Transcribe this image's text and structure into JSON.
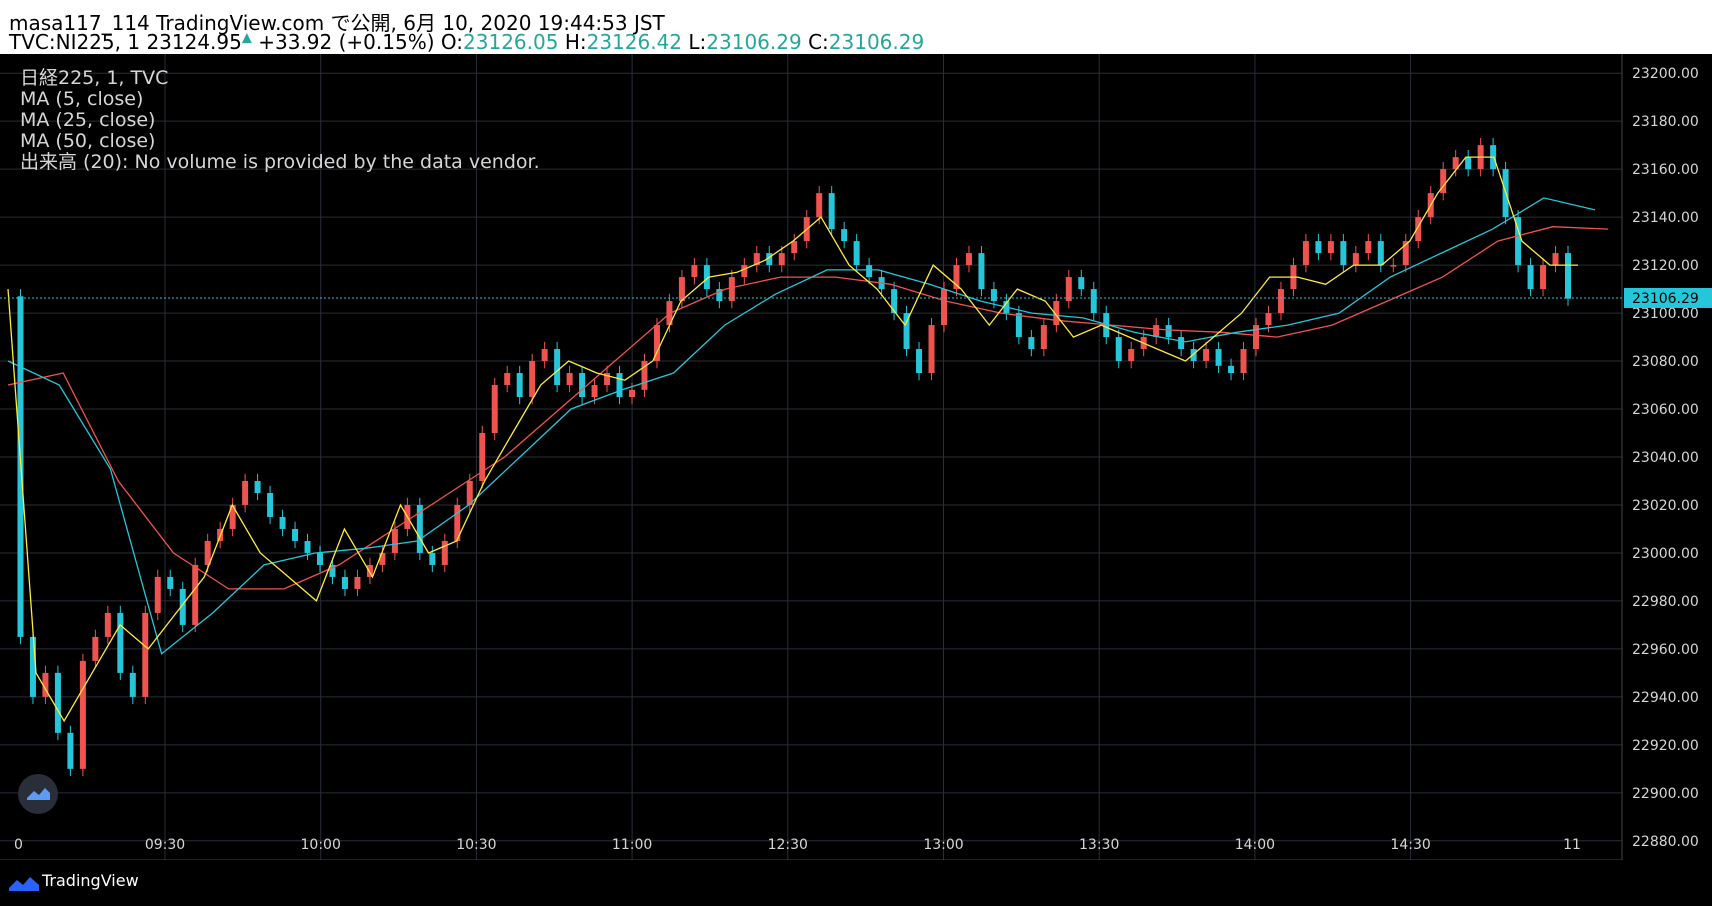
{
  "header": {
    "author": "masa117_114",
    "site": "TradingView.com",
    "published_prefix": "で公開,",
    "timestamp": "6月 10, 2020 19:44:53 JST",
    "symbol": "TVC:NI225, 1",
    "last_price": "23124.95",
    "change": "+33.92 (+0.15%)",
    "o_label": "O:",
    "o": "23126.05",
    "h_label": "H:",
    "h": "23126.42",
    "l_label": "L:",
    "l": "23106.29",
    "c_label": "C:",
    "c": "23106.29"
  },
  "legend": {
    "symbol": "日経225, 1, TVC",
    "ma5": "MA (5, close)",
    "ma25": "MA (25, close)",
    "ma50": "MA (50, close)",
    "volume": "出来高 (20): No volume is provided by the data vendor."
  },
  "footer": {
    "brand": "TradingView"
  },
  "colors": {
    "up": "#ef5350",
    "down": "#26c6da",
    "ma5": "#ffeb3b",
    "ma25": "#26c6da",
    "ma50": "#ef5350",
    "grid": "#2a2e39",
    "price_tag": "#26c6da"
  },
  "chart_data": {
    "type": "line",
    "title": "",
    "xlabel": "",
    "ylabel": "",
    "x_tick_labels": [
      "0",
      "09:30",
      "10:00",
      "10:30",
      "11:00",
      "12:30",
      "13:00",
      "13:30",
      "14:00",
      "14:30",
      "11"
    ],
    "y_tick_labels": [
      "23200.00",
      "23180.00",
      "23160.00",
      "23140.00",
      "23120.00",
      "23100.00",
      "23080.00",
      "23060.00",
      "23040.00",
      "23020.00",
      "23000.00",
      "22980.00",
      "22960.00",
      "22940.00",
      "22920.00",
      "22900.00",
      "22880.00"
    ],
    "ylim": [
      22872,
      23208
    ],
    "grid": true,
    "current_price_label": "23106.29",
    "series": [
      {
        "name": "日経225",
        "values": [
          23107,
          22965,
          22940,
          22950,
          22925,
          22910,
          22955,
          22965,
          22975,
          22950,
          22940,
          22975,
          22990,
          22985,
          22970,
          22995,
          23005,
          23010,
          23020,
          23030,
          23025,
          23015,
          23010,
          23005,
          23000,
          22995,
          22990,
          22985,
          22990,
          22995,
          23000,
          23010,
          23020,
          23000,
          22995,
          23005,
          23020,
          23030,
          23050,
          23070,
          23075,
          23065,
          23080,
          23085,
          23070,
          23075,
          23065,
          23070,
          23075,
          23065,
          23068,
          23080,
          23095,
          23105,
          23115,
          23120,
          23110,
          23105,
          23115,
          23120,
          23125,
          23120,
          23125,
          23130,
          23140,
          23150,
          23135,
          23130,
          23120,
          23115,
          23110,
          23100,
          23085,
          23075,
          23095,
          23110,
          23120,
          23125,
          23110,
          23105,
          23100,
          23090,
          23085,
          23095,
          23105,
          23115,
          23110,
          23100,
          23090,
          23080,
          23085,
          23090,
          23095,
          23090,
          23085,
          23080,
          23085,
          23078,
          23075,
          23085,
          23095,
          23100,
          23110,
          23120,
          23130,
          23125,
          23130,
          23120,
          23125,
          23130,
          23120,
          23120,
          23130,
          23140,
          23150,
          23160,
          23165,
          23160,
          23170,
          23160,
          23140,
          23120,
          23110,
          23120,
          23125,
          23106
        ]
      },
      {
        "name": "MA (5, close)",
        "values": [
          23110,
          22950,
          22930,
          22950,
          22970,
          22960,
          22975,
          22990,
          23020,
          23000,
          22990,
          22980,
          23010,
          22990,
          23020,
          23000,
          23005,
          23030,
          23050,
          23070,
          23080,
          23075,
          23072,
          23080,
          23105,
          23115,
          23117,
          23122,
          23130,
          23140,
          23120,
          23110,
          23095,
          23120,
          23110,
          23095,
          23110,
          23105,
          23090,
          23095,
          23090,
          23085,
          23080,
          23090,
          23100,
          23115,
          23115,
          23112,
          23120,
          23120,
          23130,
          23150,
          23165,
          23165,
          23130,
          23120,
          23120
        ]
      },
      {
        "name": "MA (25, close)",
        "values": [
          23080,
          23070,
          23035,
          22958,
          22975,
          22995,
          23000,
          23002,
          23005,
          23020,
          23040,
          23060,
          23068,
          23075,
          23095,
          23108,
          23118,
          23118,
          23112,
          23105,
          23100,
          23098,
          23092,
          23088,
          23092,
          23095,
          23100,
          23115,
          23125,
          23135,
          23148,
          23143
        ]
      },
      {
        "name": "MA (50, close)",
        "values": [
          23070,
          23075,
          23030,
          23000,
          22985,
          22985,
          22995,
          23010,
          23025,
          23040,
          23060,
          23080,
          23100,
          23110,
          23115,
          23115,
          23112,
          23105,
          23100,
          23097,
          23095,
          23093,
          23092,
          23090,
          23095,
          23105,
          23115,
          23130,
          23136,
          23135
        ]
      }
    ]
  }
}
